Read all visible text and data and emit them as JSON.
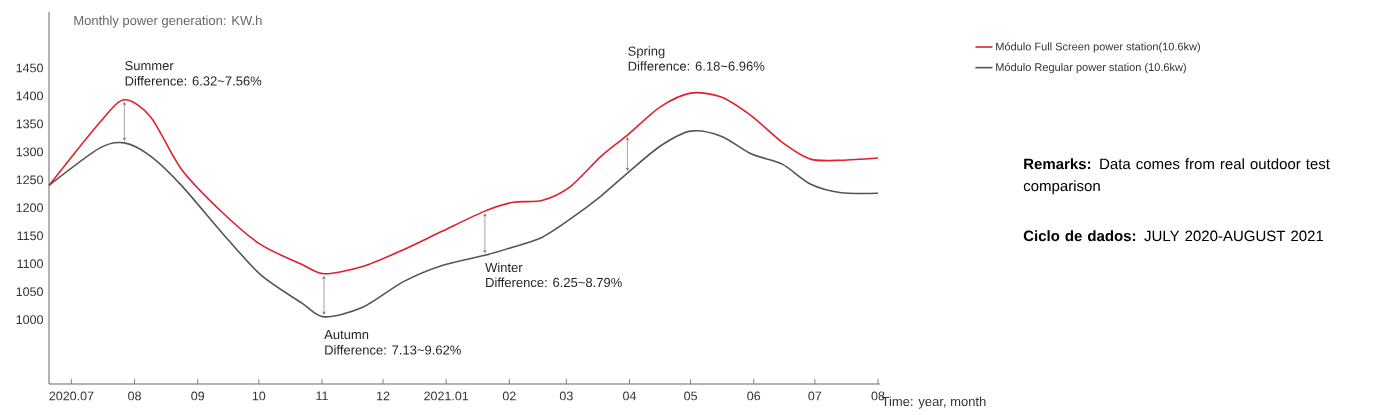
{
  "chart_data": {
    "type": "line",
    "ylabel": "Monthly power generation: KW.h",
    "xlabel": "Time: year, month",
    "x": [
      "2020-06-20",
      "2020-07-15",
      "2020-07-27",
      "2020-08-09",
      "2020-08-24",
      "2020-09-13",
      "2020-10-02",
      "2020-10-22",
      "2020-11-02",
      "2020-11-21",
      "2020-12-11",
      "2020-12-30",
      "2021-01-20",
      "2021-02-03",
      "2021-02-17",
      "2021-03-03",
      "2021-03-18",
      "2021-03-31",
      "2021-04-16",
      "2021-05-01",
      "2021-05-16",
      "2021-05-31",
      "2021-06-15",
      "2021-06-29",
      "2021-07-14",
      "2021-08-01"
    ],
    "series": [
      {
        "name": "Módulo Full Screen  power station(10.6kw)",
        "color": "#e0202a",
        "values": [
          1240,
          1353,
          1393,
          1362,
          1269,
          1192,
          1134,
          1099,
          1082,
          1095,
          1125,
          1158,
          1194,
          1210,
          1213,
          1238,
          1292,
          1330,
          1380,
          1405,
          1398,
          1364,
          1317,
          1287,
          1285,
          1289
        ]
      },
      {
        "name": "Módulo Regular power station (10.6kw)",
        "color": "#555555",
        "values": [
          1240,
          1307,
          1316,
          1292,
          1240,
          1155,
          1080,
          1030,
          1005,
          1022,
          1068,
          1097,
          1115,
          1130,
          1147,
          1180,
          1221,
          1262,
          1310,
          1337,
          1328,
          1296,
          1278,
          1242,
          1227,
          1226
        ]
      }
    ],
    "xlim": [
      "2020-06-20",
      "2021-08-02"
    ],
    "ylim": [
      885,
      1550
    ],
    "xticks": [
      {
        "value": "2020-07",
        "label": "2020.07"
      },
      {
        "value": "2020-08",
        "label": "08"
      },
      {
        "value": "2020-09",
        "label": "09"
      },
      {
        "value": "2020-10",
        "label": "10"
      },
      {
        "value": "2020-11",
        "label": "11"
      },
      {
        "value": "2020-12",
        "label": "12"
      },
      {
        "value": "2021-01",
        "label": "2021.01"
      },
      {
        "value": "2021-02",
        "label": "02"
      },
      {
        "value": "2021-03",
        "label": "03"
      },
      {
        "value": "2021-04",
        "label": "04"
      },
      {
        "value": "2021-05",
        "label": "05"
      },
      {
        "value": "2021-06",
        "label": "06"
      },
      {
        "value": "2021-07",
        "label": "07"
      },
      {
        "value": "2021-08",
        "label": "08"
      }
    ],
    "yticks": [
      1000,
      1050,
      1100,
      1150,
      1200,
      1250,
      1300,
      1350,
      1400,
      1450
    ],
    "legend": "top right",
    "line_style": "solid",
    "annotations": [
      {
        "text": "Summer",
        "x": "2020-07-27",
        "y": 1393
      },
      {
        "text": "Difference: 6.32~7.56%",
        "x": "2020-07-27",
        "y": 1393
      },
      {
        "text": "Autumn",
        "x": "2020-11-02",
        "y": 1005
      },
      {
        "text": "Difference: 7.13~9.62%",
        "x": "2020-11-02",
        "y": 1005
      },
      {
        "text": "Winter",
        "x": "2021-01-20",
        "y": 1115
      },
      {
        "text": "Difference: 6.25~8.79%",
        "x": "2021-01-20",
        "y": 1115
      },
      "Spring",
      "Difference: 6.18~6.96%",
      "**Remarks:** Data comes from real outdoor test comparison",
      "**Ciclo de dados:** JULY 2020-AUGUST 2021"
    ]
  }
}
